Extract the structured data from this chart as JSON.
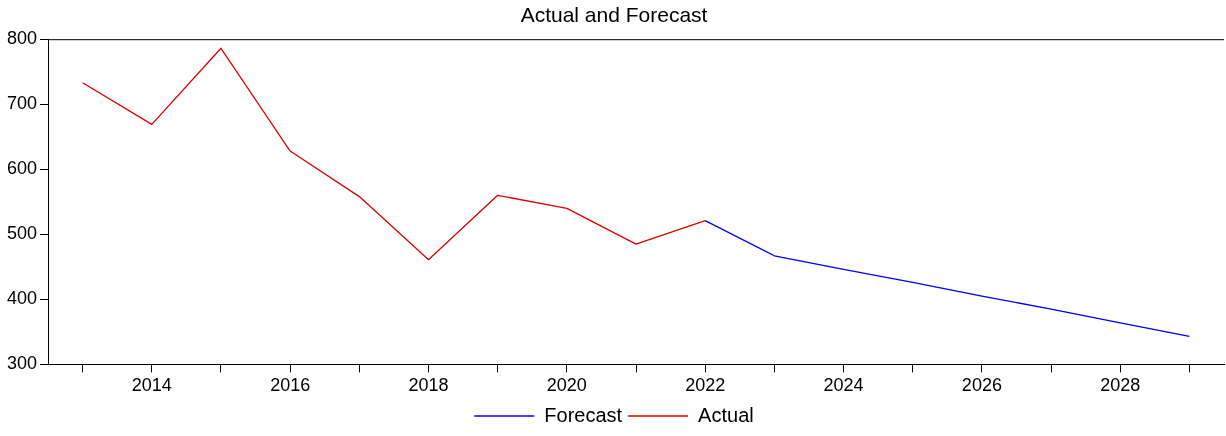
{
  "chart_data": {
    "type": "line",
    "title": "Actual and Forecast",
    "xlim": [
      2012.5,
      2029.5
    ],
    "xticks": [
      {
        "value": 2013,
        "label": null
      },
      2014,
      {
        "value": 2015,
        "label": null
      },
      2016,
      {
        "value": 2017,
        "label": null
      },
      2018,
      {
        "value": 2019,
        "label": null
      },
      2020,
      {
        "value": 2021,
        "label": null
      },
      2022,
      {
        "value": 2023,
        "label": null
      },
      2024,
      {
        "value": 2025,
        "label": null
      },
      2026,
      {
        "value": 2027,
        "label": null
      },
      2028,
      {
        "value": 2029,
        "label": null
      }
    ],
    "ylim": [
      300,
      800
    ],
    "yticks": [
      300,
      400,
      500,
      600,
      700,
      800
    ],
    "grid": false,
    "legend": "bottom",
    "marker": "none",
    "line_style": "solid",
    "series": [
      {
        "name": "Forecast",
        "color": "#0000ff",
        "x": [
          2022,
          2023,
          2024,
          2025,
          2026,
          2027,
          2028,
          2029
        ],
        "values": [
          521,
          467,
          446,
          426,
          405,
          385,
          364,
          343
        ]
      },
      {
        "name": "Actual",
        "color": "#dd0000",
        "x": [
          2013,
          2014,
          2015,
          2016,
          2017,
          2018,
          2019,
          2020,
          2021,
          2022
        ],
        "values": [
          733,
          669,
          786,
          628,
          558,
          461,
          560,
          540,
          485,
          521
        ]
      }
    ]
  }
}
